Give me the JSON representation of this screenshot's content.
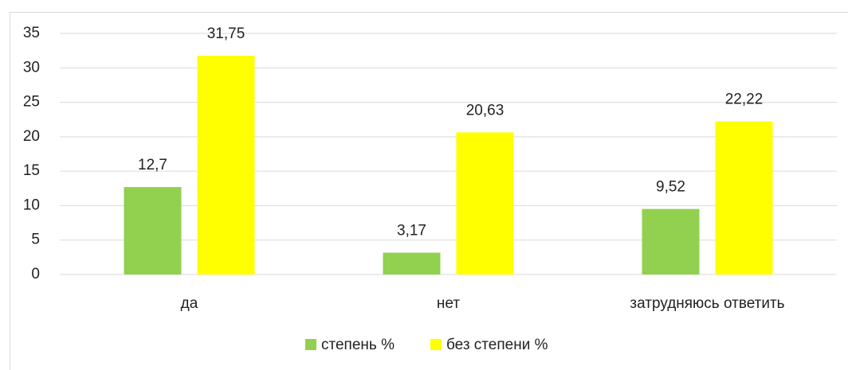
{
  "chart_data": {
    "type": "bar",
    "categories": [
      "да",
      "нет",
      "затрудняюсь ответить"
    ],
    "series": [
      {
        "name": "степень %",
        "color": "#92d050",
        "values": [
          12.7,
          3.17,
          9.52
        ],
        "value_labels": [
          "12,7",
          "3,17",
          "9,52"
        ]
      },
      {
        "name": "без степени %",
        "color": "#ffff00",
        "values": [
          31.75,
          20.63,
          22.22
        ],
        "value_labels": [
          "31,75",
          "20,63",
          "22,22"
        ]
      }
    ],
    "ylim": [
      0,
      35
    ],
    "yticks": [
      0,
      5,
      10,
      15,
      20,
      25,
      30,
      35
    ],
    "grid": true,
    "legend": "bottom"
  }
}
